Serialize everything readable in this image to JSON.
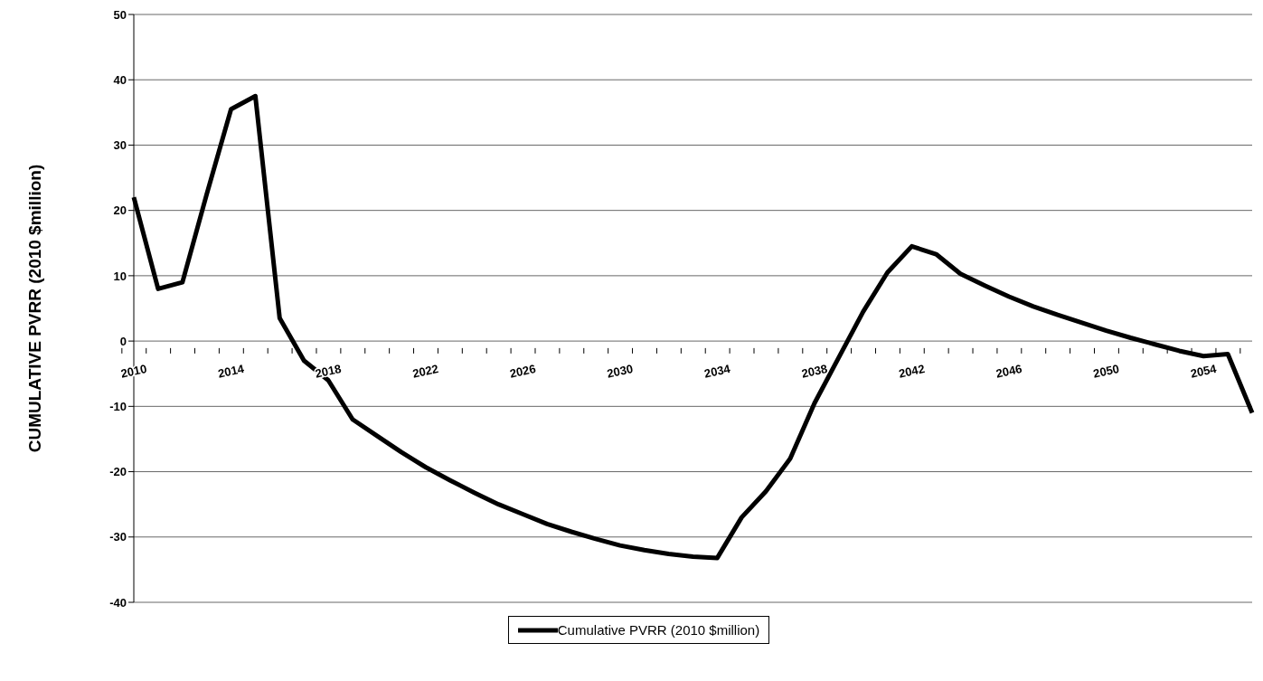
{
  "chart_data": {
    "type": "line",
    "ylabel": "CUMULATIVE PVRR (2010 $million)",
    "categories": [
      "2010",
      null,
      null,
      null,
      "2014",
      null,
      null,
      null,
      "2018",
      null,
      null,
      null,
      "2022",
      null,
      null,
      null,
      "2026",
      null,
      null,
      null,
      "2030",
      null,
      null,
      null,
      "2034",
      null,
      null,
      null,
      "2038",
      null,
      null,
      null,
      "2042",
      null,
      null,
      null,
      "2046",
      null,
      null,
      null,
      "2050",
      null,
      null,
      null,
      "2054",
      null,
      null
    ],
    "series": [
      {
        "name": "Cumulative PVRR (2010 $million)",
        "color": "#000000",
        "values": [
          22,
          8,
          9,
          22.5,
          35.5,
          37.5,
          3.5,
          -3,
          -6,
          -12,
          -14.5,
          -17,
          -19.3,
          -21.3,
          -23.2,
          -25,
          -26.5,
          -28,
          -29.2,
          -30.3,
          -31.3,
          -32,
          -32.6,
          -33,
          -33.2,
          -27,
          -23,
          -18,
          -9.5,
          -2.5,
          4.5,
          10.5,
          14.5,
          13.3,
          10.3,
          8.5,
          6.8,
          5.3,
          4,
          2.8,
          1.6,
          0.5,
          -0.5,
          -1.5,
          -2.3,
          -2,
          -11
        ]
      }
    ],
    "ylim": [
      -40,
      50
    ],
    "yticks": [
      -40,
      -30,
      -20,
      -10,
      0,
      10,
      20,
      30,
      40,
      50
    ],
    "grid": "y",
    "legend": "bottom",
    "marker": "none",
    "line_style": "solid"
  }
}
